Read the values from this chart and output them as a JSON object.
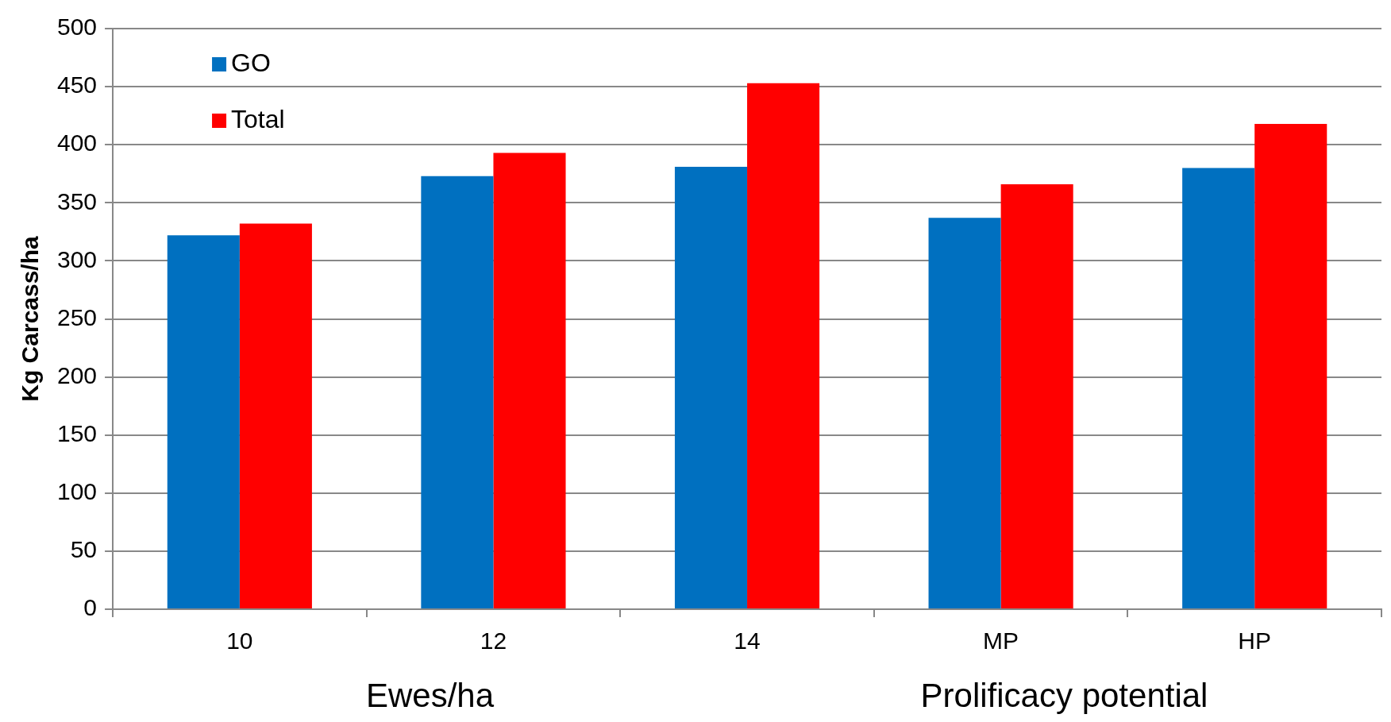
{
  "chart_data": {
    "type": "bar",
    "ylabel": "Kg Carcass/ha",
    "categories": [
      "10",
      "12",
      "14",
      "MP",
      "HP"
    ],
    "series": [
      {
        "name": "GO",
        "color": "#0070c0",
        "values": [
          322,
          373,
          381,
          337,
          380
        ]
      },
      {
        "name": "Total",
        "color": "#ff0000",
        "values": [
          332,
          393,
          453,
          366,
          418
        ]
      }
    ],
    "ylim": [
      0,
      500
    ],
    "yticks": [
      0,
      50,
      100,
      150,
      200,
      250,
      300,
      350,
      400,
      450,
      500
    ],
    "grid": "y",
    "legend": "top left",
    "annotations": [
      "Ewes/ha",
      "Prolificacy potential"
    ]
  }
}
